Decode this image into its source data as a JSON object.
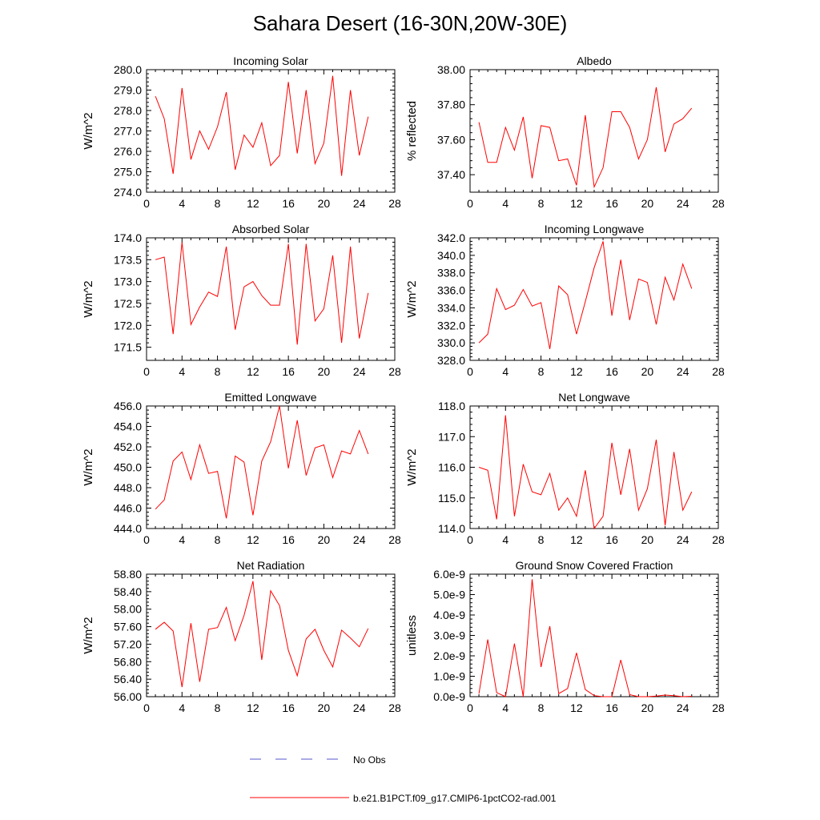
{
  "page": {
    "title": "Sahara Desert (16-30N,20W-30E)"
  },
  "legend": {
    "entries": [
      {
        "label": "No Obs",
        "color": "#5555cc",
        "dashed": true
      },
      {
        "label": "b.e21.B1PCT.f09_g17.CMIP6-1pctCO2-rad.001",
        "color": "#ff0000",
        "dashed": false
      }
    ]
  },
  "chart_data": [
    {
      "type": "line",
      "title": "Incoming Solar",
      "ylabel": "W/m^2",
      "xlim": [
        0,
        28
      ],
      "ylim": [
        274,
        280
      ],
      "xticks": [
        "0",
        "4",
        "8",
        "12",
        "16",
        "20",
        "24",
        "28"
      ],
      "yticks": [
        "274.0",
        "275.0",
        "276.0",
        "277.0",
        "278.0",
        "279.0",
        "280.0"
      ],
      "x": [
        1,
        2,
        3,
        4,
        5,
        6,
        7,
        8,
        9,
        10,
        11,
        12,
        13,
        14,
        15,
        16,
        17,
        18,
        19,
        20,
        21,
        22,
        23,
        24,
        25
      ],
      "series": [
        {
          "values": [
            278.7,
            277.6,
            274.9,
            279.1,
            275.6,
            277.0,
            276.1,
            277.2,
            278.9,
            275.1,
            276.8,
            276.2,
            277.4,
            275.3,
            275.8,
            279.4,
            275.9,
            279.0,
            275.4,
            276.4,
            279.7,
            274.8,
            279.0,
            275.8,
            277.7
          ],
          "color": "#ff0000"
        }
      ]
    },
    {
      "type": "line",
      "title": "Albedo",
      "ylabel": "% reflected",
      "xlim": [
        0,
        28
      ],
      "ylim": [
        37.3,
        38.0
      ],
      "xticks": [
        "0",
        "4",
        "8",
        "12",
        "16",
        "20",
        "24",
        "28"
      ],
      "yticks": [
        "37.40",
        "37.60",
        "37.80",
        "38.00"
      ],
      "x": [
        1,
        2,
        3,
        4,
        5,
        6,
        7,
        8,
        9,
        10,
        11,
        12,
        13,
        14,
        15,
        16,
        17,
        18,
        19,
        20,
        21,
        22,
        23,
        24,
        25
      ],
      "series": [
        {
          "values": [
            37.7,
            37.47,
            37.47,
            37.67,
            37.54,
            37.73,
            37.38,
            37.68,
            37.67,
            37.48,
            37.49,
            37.34,
            37.74,
            37.33,
            37.44,
            37.76,
            37.76,
            37.67,
            37.49,
            37.6,
            37.9,
            37.53,
            37.69,
            37.72,
            37.78
          ],
          "color": "#ff0000"
        }
      ]
    },
    {
      "type": "line",
      "title": "Absorbed Solar",
      "ylabel": "W/m^2",
      "xlim": [
        0,
        28
      ],
      "ylim": [
        171.2,
        174.0
      ],
      "xticks": [
        "0",
        "4",
        "8",
        "12",
        "16",
        "20",
        "24",
        "28"
      ],
      "yticks": [
        "171.5",
        "172.0",
        "172.5",
        "173.0",
        "173.5",
        "174.0"
      ],
      "x": [
        1,
        2,
        3,
        4,
        5,
        6,
        7,
        8,
        9,
        10,
        11,
        12,
        13,
        14,
        15,
        16,
        17,
        18,
        19,
        20,
        21,
        22,
        23,
        24,
        25
      ],
      "series": [
        {
          "values": [
            173.5,
            173.56,
            171.8,
            173.9,
            172.02,
            172.42,
            172.76,
            172.66,
            173.8,
            171.9,
            172.88,
            173.0,
            172.68,
            172.46,
            172.46,
            173.86,
            171.56,
            173.86,
            172.1,
            172.38,
            173.6,
            171.6,
            173.8,
            171.7,
            172.74
          ],
          "color": "#ff0000"
        }
      ]
    },
    {
      "type": "line",
      "title": "Incoming Longwave",
      "ylabel": "W/m^2",
      "xlim": [
        0,
        28
      ],
      "ylim": [
        328,
        342
      ],
      "xticks": [
        "0",
        "4",
        "8",
        "12",
        "16",
        "20",
        "24",
        "28"
      ],
      "yticks": [
        "328.0",
        "330.0",
        "332.0",
        "334.0",
        "336.0",
        "338.0",
        "340.0",
        "342.0"
      ],
      "x": [
        1,
        2,
        3,
        4,
        5,
        6,
        7,
        8,
        9,
        10,
        11,
        12,
        13,
        14,
        15,
        16,
        17,
        18,
        19,
        20,
        21,
        22,
        23,
        24,
        25
      ],
      "series": [
        {
          "values": [
            330.0,
            331.0,
            336.2,
            333.8,
            334.3,
            336.1,
            334.2,
            334.6,
            329.3,
            336.5,
            335.5,
            331.0,
            334.7,
            338.6,
            341.6,
            333.1,
            339.5,
            332.6,
            337.3,
            336.9,
            332.1,
            337.5,
            334.9,
            339.0,
            336.2
          ],
          "color": "#ff0000"
        }
      ]
    },
    {
      "type": "line",
      "title": "Emitted Longwave",
      "ylabel": "W/m^2",
      "xlim": [
        0,
        28
      ],
      "ylim": [
        444,
        456
      ],
      "xticks": [
        "0",
        "4",
        "8",
        "12",
        "16",
        "20",
        "24",
        "28"
      ],
      "yticks": [
        "444.0",
        "446.0",
        "448.0",
        "450.0",
        "452.0",
        "454.0",
        "456.0"
      ],
      "x": [
        1,
        2,
        3,
        4,
        5,
        6,
        7,
        8,
        9,
        10,
        11,
        12,
        13,
        14,
        15,
        16,
        17,
        18,
        19,
        20,
        21,
        22,
        23,
        24,
        25
      ],
      "series": [
        {
          "values": [
            445.9,
            446.8,
            450.6,
            451.5,
            448.8,
            452.2,
            449.4,
            449.6,
            445.0,
            451.1,
            450.5,
            445.3,
            450.6,
            452.5,
            456.0,
            449.9,
            454.6,
            449.2,
            451.9,
            452.2,
            449.0,
            451.6,
            451.3,
            453.6,
            451.3
          ],
          "color": "#ff0000"
        }
      ]
    },
    {
      "type": "line",
      "title": "Net Longwave",
      "ylabel": "W/m^2",
      "xlim": [
        0,
        28
      ],
      "ylim": [
        114,
        118
      ],
      "xticks": [
        "0",
        "4",
        "8",
        "12",
        "16",
        "20",
        "24",
        "28"
      ],
      "yticks": [
        "114.0",
        "115.0",
        "116.0",
        "117.0",
        "118.0"
      ],
      "x": [
        1,
        2,
        3,
        4,
        5,
        6,
        7,
        8,
        9,
        10,
        11,
        12,
        13,
        14,
        15,
        16,
        17,
        18,
        19,
        20,
        21,
        22,
        23,
        24,
        25
      ],
      "series": [
        {
          "values": [
            116.0,
            115.9,
            114.3,
            117.7,
            114.4,
            116.1,
            115.2,
            115.1,
            115.8,
            114.6,
            115.0,
            114.4,
            115.9,
            114.0,
            114.4,
            116.8,
            115.1,
            116.6,
            114.6,
            115.3,
            116.9,
            114.1,
            116.5,
            114.6,
            115.2
          ],
          "color": "#ff0000"
        }
      ]
    },
    {
      "type": "line",
      "title": "Net Radiation",
      "ylabel": "W/m^2",
      "xlim": [
        0,
        28
      ],
      "ylim": [
        56.0,
        58.8
      ],
      "xticks": [
        "0",
        "4",
        "8",
        "12",
        "16",
        "20",
        "24",
        "28"
      ],
      "yticks": [
        "56.00",
        "56.40",
        "56.80",
        "57.20",
        "57.60",
        "58.00",
        "58.40",
        "58.80"
      ],
      "x": [
        1,
        2,
        3,
        4,
        5,
        6,
        7,
        8,
        9,
        10,
        11,
        12,
        13,
        14,
        15,
        16,
        17,
        18,
        19,
        20,
        21,
        22,
        23,
        24,
        25
      ],
      "series": [
        {
          "values": [
            57.54,
            57.7,
            57.5,
            56.22,
            57.68,
            56.34,
            57.54,
            57.58,
            58.04,
            57.28,
            57.86,
            58.64,
            56.84,
            58.42,
            58.08,
            57.06,
            56.48,
            57.32,
            57.54,
            57.06,
            56.68,
            57.52,
            57.34,
            57.14,
            57.56
          ],
          "color": "#ff0000"
        }
      ]
    },
    {
      "type": "line",
      "title": "Ground Snow Covered Fraction",
      "ylabel": "unitless",
      "xlim": [
        0,
        28
      ],
      "ylim": [
        0,
        6e-09
      ],
      "xticks": [
        "0",
        "4",
        "8",
        "12",
        "16",
        "20",
        "24",
        "28"
      ],
      "yticks": [
        "0.0e-9",
        "1.0e-9",
        "2.0e-9",
        "3.0e-9",
        "4.0e-9",
        "5.0e-9",
        "6.0e-9"
      ],
      "x": [
        1,
        2,
        3,
        4,
        5,
        6,
        7,
        8,
        9,
        10,
        11,
        12,
        13,
        14,
        15,
        16,
        17,
        18,
        19,
        20,
        21,
        22,
        23,
        24,
        25
      ],
      "series": [
        {
          "values": [
            1.5e-10,
            2.8e-09,
            2e-10,
            0.0,
            2.6e-09,
            0.0,
            5.75e-09,
            1.45e-09,
            3.45e-09,
            1.5e-10,
            4e-10,
            2.15e-09,
            3.5e-10,
            5e-11,
            0.0,
            0.0,
            1.8e-09,
            1e-10,
            0.0,
            0.0,
            3e-11,
            8e-11,
            5e-11,
            0.0,
            2e-11
          ],
          "color": "#ff0000"
        }
      ]
    }
  ]
}
